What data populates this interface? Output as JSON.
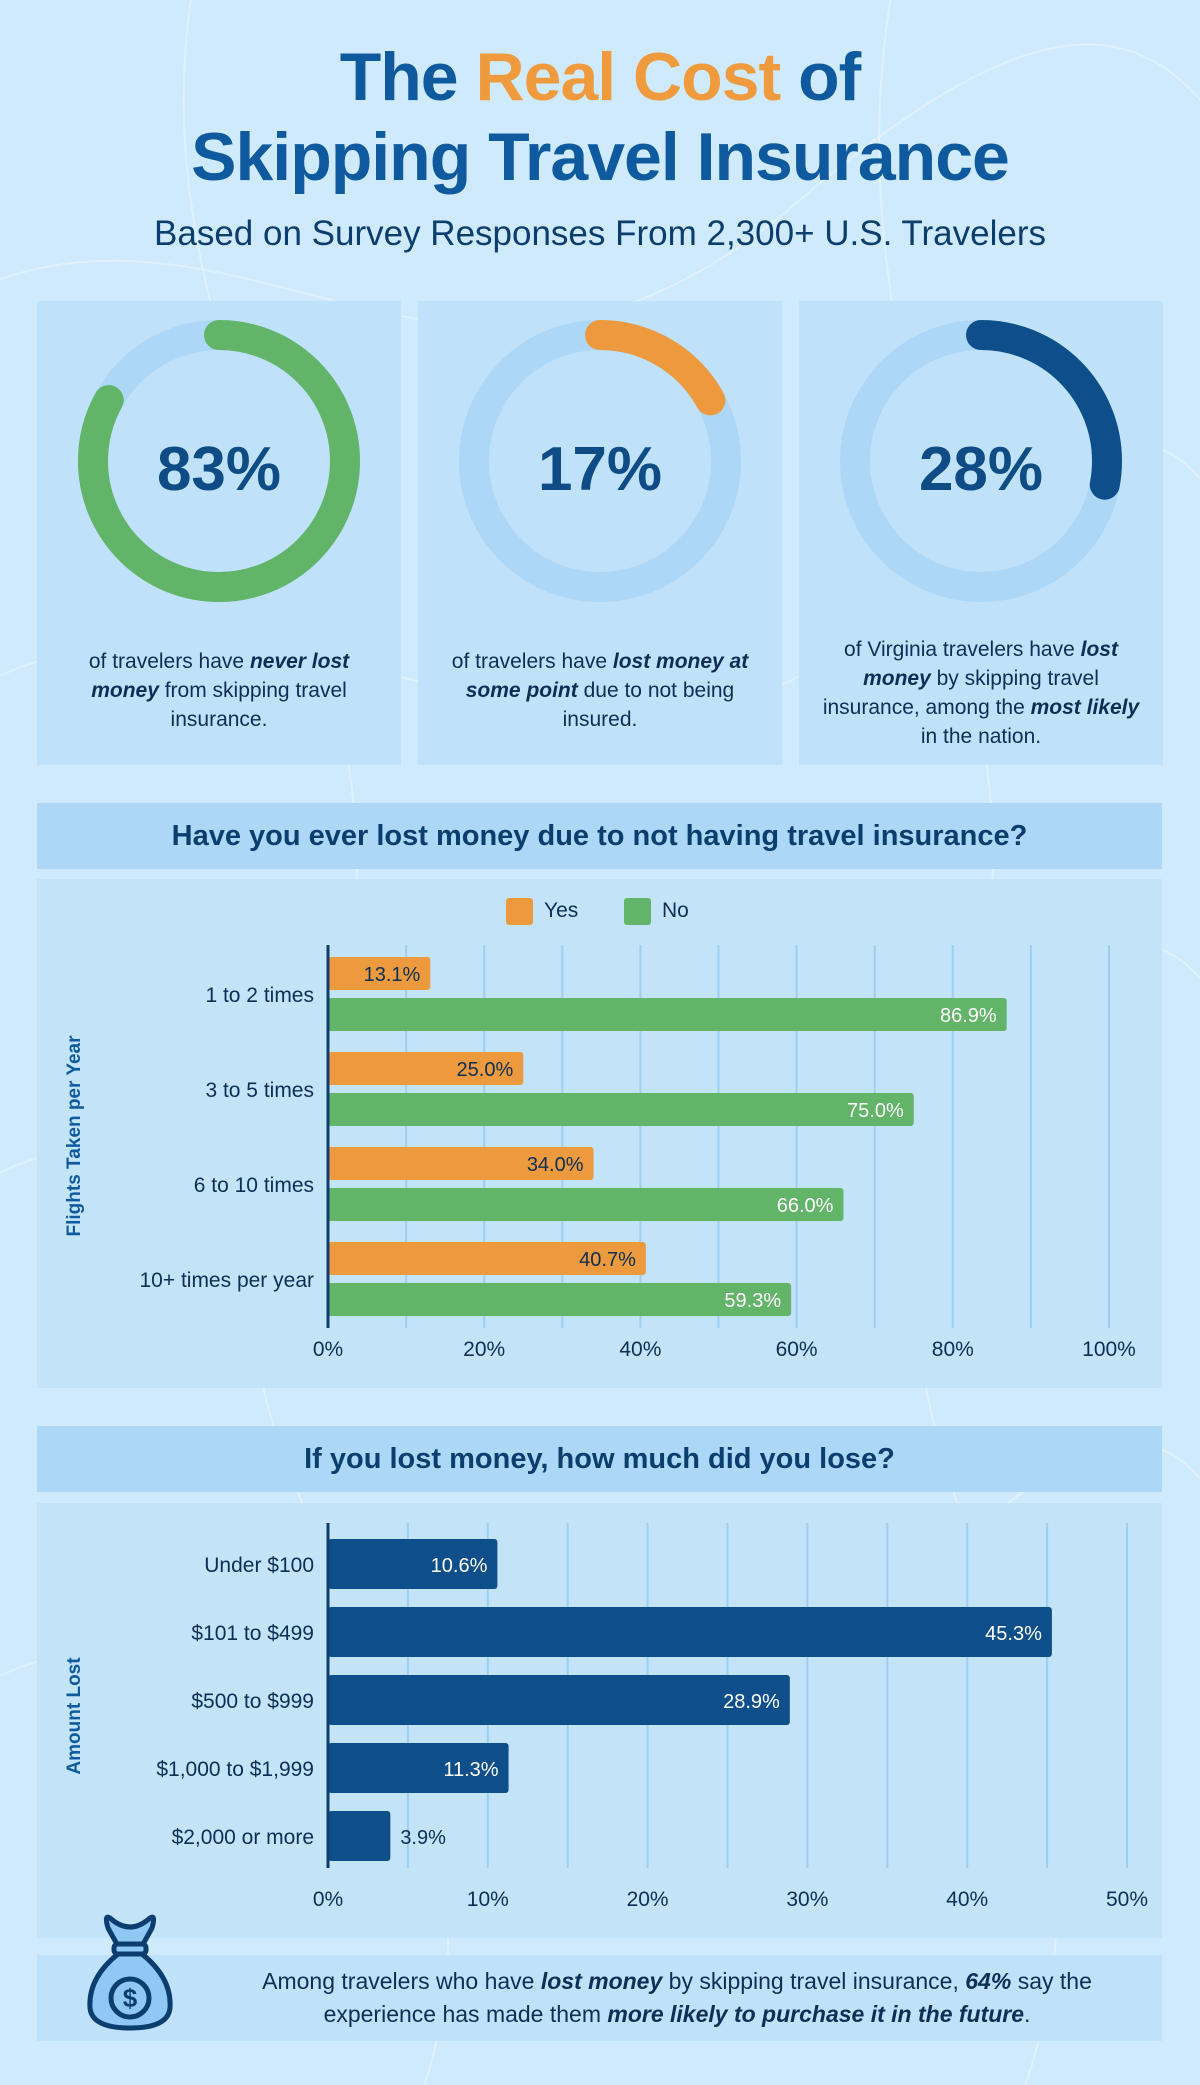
{
  "header": {
    "title_pre": "The ",
    "title_accent": "Real Cost",
    "title_post": " of",
    "title_line2": "Skipping Travel Insurance",
    "subtitle": "Based on Survey Responses From 2,300+ U.S. Travelers"
  },
  "colors": {
    "green": "#62b468",
    "orange": "#ec9a3d",
    "navy": "#0e4f8b",
    "track": "#acd7f7",
    "title_blue": "#0f5a9e"
  },
  "stats": [
    {
      "value": "83%",
      "fraction": 0.83,
      "color": "#62b468",
      "text_parts": [
        [
          "of travelers have ",
          false
        ],
        [
          "never lost money",
          true
        ],
        [
          " from skipping travel insurance.",
          false
        ]
      ]
    },
    {
      "value": "17%",
      "fraction": 0.17,
      "color": "#ec9a3d",
      "text_parts": [
        [
          "of travelers have ",
          false
        ],
        [
          "lost money at some point",
          true
        ],
        [
          " due to not being insured.",
          false
        ]
      ]
    },
    {
      "value": "28%",
      "fraction": 0.28,
      "color": "#0e4f8b",
      "text_parts": [
        [
          "of Virginia travelers have ",
          false
        ],
        [
          "lost money",
          true
        ],
        [
          " by skipping travel insurance, among the ",
          false
        ],
        [
          "most likely",
          true
        ],
        [
          " in the nation.",
          false
        ]
      ]
    }
  ],
  "chart1_header": "Have you ever lost money due to not having travel insurance?",
  "chart2_header": "If you lost money, how much did you lose?",
  "chart_data": [
    {
      "type": "bar",
      "orientation": "horizontal",
      "title": "Have you ever lost money due to not having travel insurance?",
      "ylabel": "Flights Taken per Year",
      "categories": [
        "1 to 2 times",
        "3 to 5 times",
        "6 to 10 times",
        "10+ times per year"
      ],
      "series": [
        {
          "name": "Yes",
          "color": "#ec9a3d",
          "values": [
            13.1,
            25.0,
            34.0,
            40.7
          ],
          "labels": [
            "13.1%",
            "25.0%",
            "34.0%",
            "40.7%"
          ]
        },
        {
          "name": "No",
          "color": "#62b468",
          "values": [
            86.9,
            75.0,
            66.0,
            59.3
          ],
          "labels": [
            "86.9%",
            "75.0%",
            "66.0%",
            "59.3%"
          ]
        }
      ],
      "xlim": [
        0,
        100
      ],
      "xticks": [
        "0%",
        "20%",
        "40%",
        "60%",
        "80%",
        "100%"
      ],
      "legend": "top-center",
      "grid": true
    },
    {
      "type": "bar",
      "orientation": "horizontal",
      "title": "If you lost money, how much did you lose?",
      "ylabel": "Amount Lost",
      "categories": [
        "Under $100",
        "$101 to $499",
        "$500 to $999",
        "$1,000 to $1,999",
        "$2,000 or more"
      ],
      "series": [
        {
          "color": "#0e4f8b",
          "values": [
            10.6,
            45.3,
            28.9,
            11.3,
            3.9
          ],
          "labels": [
            "10.6%",
            "45.3%",
            "28.9%",
            "11.3%",
            "3.9%"
          ]
        }
      ],
      "xlim": [
        0,
        50
      ],
      "xticks": [
        "0%",
        "10%",
        "20%",
        "30%",
        "40%",
        "50%"
      ],
      "grid": true
    }
  ],
  "bottom_note": {
    "icon": "money-bag-icon",
    "icon_symbol": "$",
    "text_parts": [
      [
        "Among travelers who have ",
        false
      ],
      [
        "lost money",
        true
      ],
      [
        " by skipping travel insurance, ",
        false
      ],
      [
        "64%",
        true
      ],
      [
        " say the experience has made them ",
        false
      ],
      [
        "more likely to purchase it in the future",
        true
      ],
      [
        ".",
        false
      ]
    ]
  }
}
